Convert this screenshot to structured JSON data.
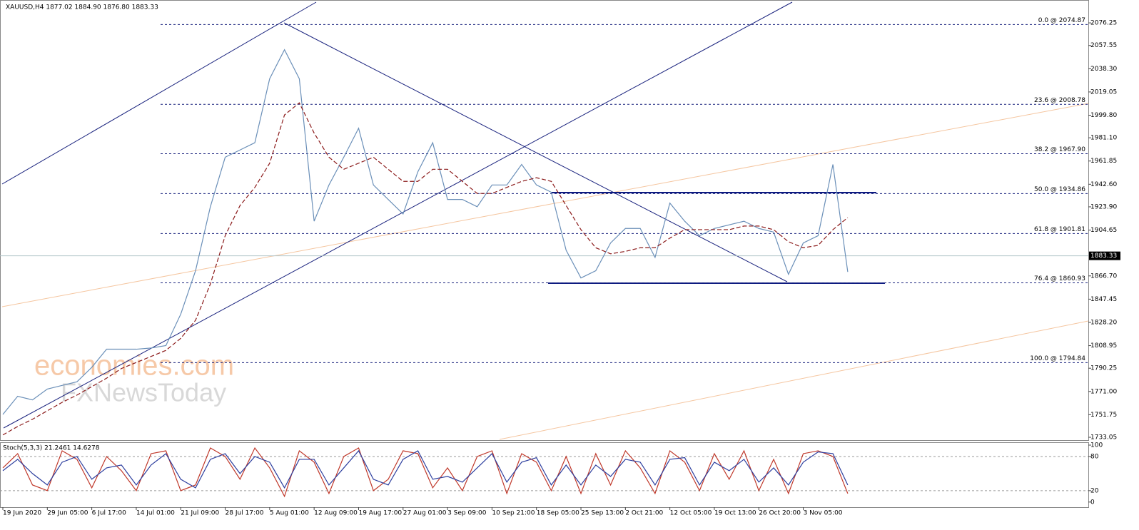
{
  "chart_data": [
    {
      "type": "line",
      "title": "XAUUSD,H4  1877.02 1884.90 1876.80 1883.33",
      "watermarks": [
        "economies.com",
        "FXNewsToday"
      ],
      "categories": [
        "19 Jun 2020",
        null,
        null,
        "29 Jun 05:00",
        null,
        null,
        "6 Jul 17:00",
        null,
        null,
        "14 Jul 01:00",
        null,
        null,
        "21 Jul 09:00",
        null,
        null,
        "28 Jul 17:00",
        null,
        null,
        "5 Aug 01:00",
        null,
        null,
        "12 Aug 09:00",
        null,
        null,
        "19 Aug 17:00",
        null,
        null,
        "27 Aug 01:00",
        null,
        null,
        "3 Sep 09:00",
        null,
        null,
        "10 Sep 21:00",
        null,
        null,
        "18 Sep 05:00",
        null,
        null,
        "25 Sep 13:00",
        null,
        null,
        "2 Oct 21:00",
        null,
        null,
        "12 Oct 05:00",
        null,
        null,
        "19 Oct 13:00",
        null,
        null,
        "26 Oct 20:00",
        null,
        null,
        "3 Nov 05:00",
        null,
        null,
        null
      ],
      "series": [
        {
          "color": "#6a8fb8",
          "values": [
            1752,
            1767,
            1764,
            1773,
            1776,
            1779,
            1791,
            1806,
            1806,
            1806,
            1807,
            1809,
            1835,
            1871,
            1924,
            1965,
            1971,
            1977,
            2030,
            2054,
            2030,
            1912,
            1942,
            1965,
            1989,
            1942,
            1930,
            1918,
            1953,
            1977,
            1930,
            1930,
            1924,
            1942,
            1942,
            1959,
            1942,
            1936,
            1888,
            1865,
            1871,
            1894,
            1906,
            1906,
            1882,
            1927,
            1912,
            1900,
            1906,
            1909,
            1912,
            1906,
            1903,
            1868,
            1894,
            1900,
            1959,
            1870
          ]
        },
        {
          "color": "#8b1a1a",
          "dashed": true,
          "values": [
            1735,
            1742,
            1748,
            1755,
            1762,
            1768,
            1775,
            1782,
            1790,
            1795,
            1800,
            1805,
            1815,
            1830,
            1860,
            1900,
            1925,
            1940,
            1960,
            2000,
            2010,
            1985,
            1965,
            1955,
            1960,
            1965,
            1955,
            1945,
            1945,
            1955,
            1955,
            1945,
            1935,
            1935,
            1940,
            1945,
            1948,
            1945,
            1925,
            1905,
            1890,
            1885,
            1887,
            1890,
            1890,
            1898,
            1905,
            1905,
            1905,
            1905,
            1908,
            1908,
            1905,
            1895,
            1890,
            1892,
            1905,
            1915
          ]
        }
      ],
      "current_price": 1883.33,
      "fib_levels": [
        {
          "value": 2074.87,
          "label": "0.0 @ 2074.87"
        },
        {
          "value": 2008.78,
          "label": "23.6 @ 2008.78"
        },
        {
          "value": 1967.9,
          "label": "38.2 @ 1967.90"
        },
        {
          "value": 1934.86,
          "label": "50.0 @ 1934.86"
        },
        {
          "value": 1901.81,
          "label": "61.8 @ 1901.81"
        },
        {
          "value": 1860.93,
          "label": "76.4 @ 1860.93"
        },
        {
          "value": 1794.84,
          "label": "100.0 @ 1794.84"
        }
      ],
      "ylim": [
        1730.7,
        2095.2
      ],
      "yticks": [
        2076.25,
        2057.55,
        {
          "value": 2038.3,
          "label": "2038.30"
        },
        2019.05,
        {
          "value": 1999.8,
          "label": "1999.80"
        },
        {
          "value": 1981.1,
          "label": "1981.10"
        },
        1961.85,
        {
          "value": 1942.6,
          "label": "1942.60"
        },
        {
          "value": 1923.9,
          "label": "1923.90"
        },
        1904.65,
        {
          "value": 1866.7,
          "label": "1866.70"
        },
        1847.45,
        {
          "value": 1828.2,
          "label": "1828.20"
        },
        1808.95,
        1790.25,
        {
          "value": 1771.0,
          "label": "1771.00"
        },
        1751.75,
        1733.05
      ]
    },
    {
      "type": "line",
      "title": "Stoch(5,3,3) 21.2461 14.6278",
      "series": [
        {
          "color": "#c0392b",
          "values": [
            60,
            85,
            30,
            20,
            90,
            75,
            25,
            80,
            55,
            20,
            85,
            90,
            20,
            30,
            95,
            80,
            40,
            95,
            60,
            10,
            90,
            70,
            15,
            80,
            95,
            20,
            40,
            90,
            85,
            25,
            60,
            20,
            80,
            90,
            15,
            85,
            70,
            20,
            80,
            15,
            85,
            30,
            90,
            60,
            15,
            90,
            70,
            20,
            85,
            40,
            90,
            20,
            75,
            15,
            85,
            90,
            80,
            15
          ]
        },
        {
          "color": "#2c3e9e",
          "values": [
            55,
            75,
            50,
            30,
            70,
            80,
            40,
            60,
            65,
            30,
            65,
            85,
            40,
            25,
            75,
            85,
            50,
            80,
            70,
            25,
            75,
            75,
            30,
            60,
            90,
            40,
            30,
            75,
            90,
            40,
            45,
            35,
            60,
            85,
            35,
            70,
            78,
            30,
            65,
            30,
            65,
            45,
            75,
            70,
            30,
            75,
            78,
            30,
            70,
            55,
            75,
            35,
            60,
            30,
            70,
            88,
            85,
            30
          ]
        }
      ],
      "ylim": [
        -9,
        105
      ],
      "yticks": [
        100,
        80,
        20,
        0
      ]
    }
  ]
}
